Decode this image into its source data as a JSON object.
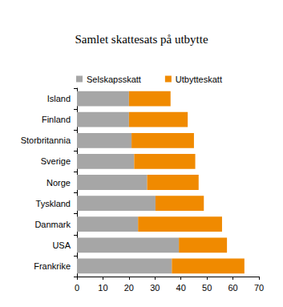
{
  "chart_data": {
    "type": "bar",
    "title": "Samlet skattesats på utbytte",
    "orientation": "horizontal",
    "stacked": true,
    "legend": "top",
    "grid": false,
    "categories": [
      "Island",
      "Finland",
      "Storbritannia",
      "Sverige",
      "Norge",
      "Tyskland",
      "Danmark",
      "USA",
      "Frankrike"
    ],
    "series": [
      {
        "name": "Selskapsskatt",
        "color": "#a6a6a6",
        "values": [
          20,
          20,
          21,
          22,
          27,
          30.2,
          23.5,
          39.2,
          36.5
        ]
      },
      {
        "name": "Utbytteskatt",
        "color": "#f08a00",
        "values": [
          16,
          22.6,
          24,
          23.5,
          19.8,
          18.6,
          32.3,
          18.5,
          27.9
        ]
      }
    ],
    "xlim": [
      0,
      70
    ],
    "xticks": [
      0,
      10,
      20,
      30,
      40,
      50,
      60,
      70
    ]
  }
}
